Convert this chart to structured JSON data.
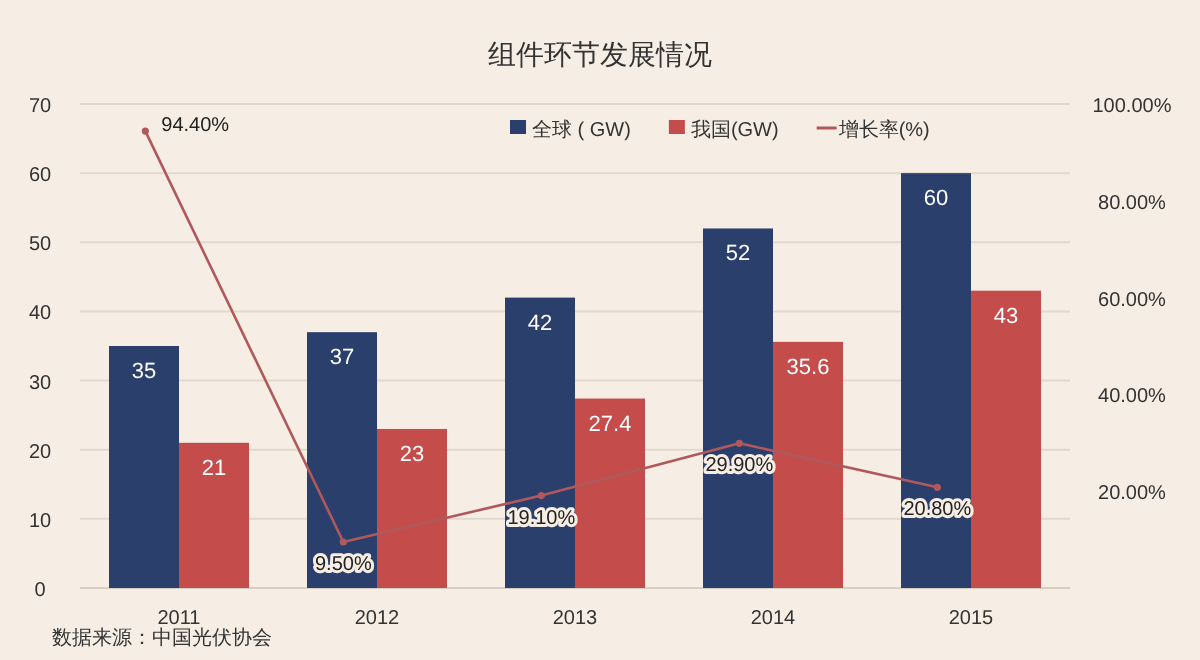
{
  "chart_data": {
    "type": "bar",
    "title": "组件环节发展情况",
    "categories": [
      "2011",
      "2012",
      "2013",
      "2014",
      "2015"
    ],
    "ylim": [
      0,
      70
    ],
    "yticks": [
      0,
      10,
      20,
      30,
      40,
      50,
      60,
      70
    ],
    "y2lim": [
      0,
      100
    ],
    "y2ticks": [
      {
        "value": 20,
        "label": "20.00%"
      },
      {
        "value": 40,
        "label": "40.00%"
      },
      {
        "value": 60,
        "label": "60.00%"
      },
      {
        "value": 80,
        "label": "80.00%"
      },
      {
        "value": 100,
        "label": "100.00%"
      }
    ],
    "grid": "y",
    "legend": "top",
    "data_labels": true,
    "series": [
      {
        "name": "全球 ( GW)",
        "color": "#2b3f6c",
        "values": [
          35,
          37,
          42,
          52,
          60
        ]
      },
      {
        "name": "我国(GW)",
        "color": "#c44d4b",
        "values": [
          21,
          23,
          27.4,
          35.6,
          43
        ]
      },
      {
        "name": "增长率(%)",
        "type": "line",
        "axis": "y2",
        "marker": "circle",
        "color": "#b0595c",
        "values": [
          94.4,
          9.5,
          19.1,
          29.9,
          20.8
        ],
        "value_labels": [
          "94.40%",
          "9.50%",
          "19.10%",
          "29.90%",
          "20.80%"
        ]
      }
    ],
    "annotations": [
      "数据来源：中国光伏协会"
    ]
  }
}
